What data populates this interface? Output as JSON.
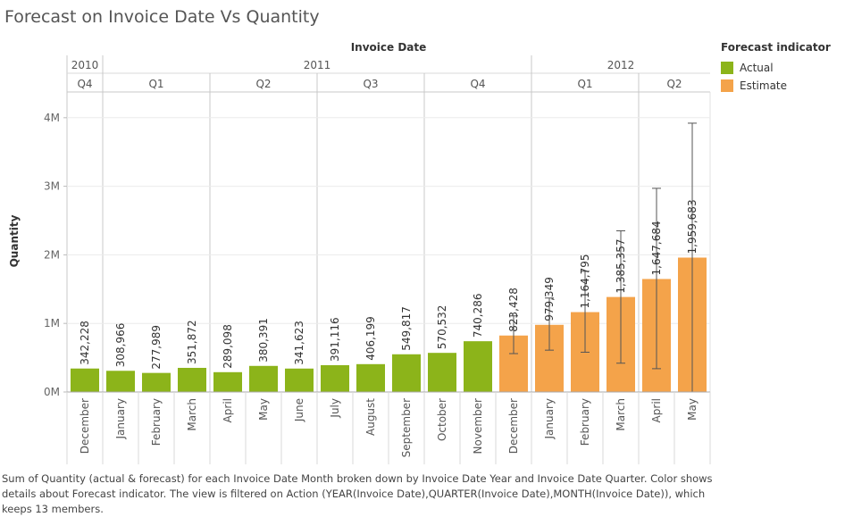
{
  "title": "Forecast on Invoice Date Vs Quantity",
  "caption": "Sum of Quantity (actual & forecast)  for each Invoice Date Month broken down by Invoice Date Year and Invoice Date Quarter.  Color shows details about Forecast indicator. The view is filtered on Action (YEAR(Invoice Date),QUARTER(Invoice Date),MONTH(Invoice Date)), which keeps 13 members.",
  "legend": {
    "title": "Forecast indicator",
    "items": [
      {
        "label": "Actual",
        "color": "#8cb41a"
      },
      {
        "label": "Estimate",
        "color": "#f4a34a"
      }
    ]
  },
  "chart_data": {
    "type": "bar",
    "title": "Forecast on Invoice Date Vs Quantity",
    "xlabel": "Invoice Date",
    "ylabel": "Quantity",
    "ylim": [
      0,
      4500000
    ],
    "yticks": [
      {
        "value": 0,
        "label": "0M"
      },
      {
        "value": 1000000,
        "label": "1M"
      },
      {
        "value": 2000000,
        "label": "2M"
      },
      {
        "value": 3000000,
        "label": "3M"
      },
      {
        "value": 4000000,
        "label": "4M"
      }
    ],
    "grid": true,
    "years": [
      {
        "label": "2010",
        "span": 1
      },
      {
        "label": "2011",
        "span": 12
      },
      {
        "label": "2012",
        "span": 5
      }
    ],
    "quarters": [
      {
        "label": "Q4",
        "span": 1
      },
      {
        "label": "Q1",
        "span": 3
      },
      {
        "label": "Q2",
        "span": 3
      },
      {
        "label": "Q3",
        "span": 3
      },
      {
        "label": "Q4",
        "span": 3
      },
      {
        "label": "Q1",
        "span": 3
      },
      {
        "label": "Q2",
        "span": 2
      }
    ],
    "categories": [
      "December",
      "January",
      "February",
      "March",
      "April",
      "May",
      "June",
      "July",
      "August",
      "September",
      "October",
      "November",
      "December",
      "January",
      "February",
      "March",
      "April",
      "May"
    ],
    "values": [
      342228,
      308966,
      277989,
      351872,
      289098,
      380391,
      341623,
      391116,
      406199,
      549817,
      570532,
      740286,
      823428,
      979349,
      1164795,
      1385357,
      1647684,
      1959683
    ],
    "labels": [
      "342,228",
      "308,966",
      "277,989",
      "351,872",
      "289,098",
      "380,391",
      "341,623",
      "391,116",
      "406,199",
      "549,817",
      "570,532",
      "740,286",
      "823,428",
      "979,349",
      "1,164,795",
      "1,385,357",
      "1,647,684",
      "1,959,683"
    ],
    "indicator": [
      "Actual",
      "Actual",
      "Actual",
      "Actual",
      "Actual",
      "Actual",
      "Actual",
      "Actual",
      "Actual",
      "Actual",
      "Actual",
      "Actual",
      "Estimate",
      "Estimate",
      "Estimate",
      "Estimate",
      "Estimate",
      "Estimate"
    ],
    "error_bars": [
      null,
      null,
      null,
      null,
      null,
      null,
      null,
      null,
      null,
      null,
      null,
      null,
      [
        560000,
        1110000
      ],
      [
        610000,
        1370000
      ],
      [
        580000,
        1760000
      ],
      [
        420000,
        2350000
      ],
      [
        340000,
        2970000
      ],
      [
        0,
        3920000
      ]
    ]
  }
}
